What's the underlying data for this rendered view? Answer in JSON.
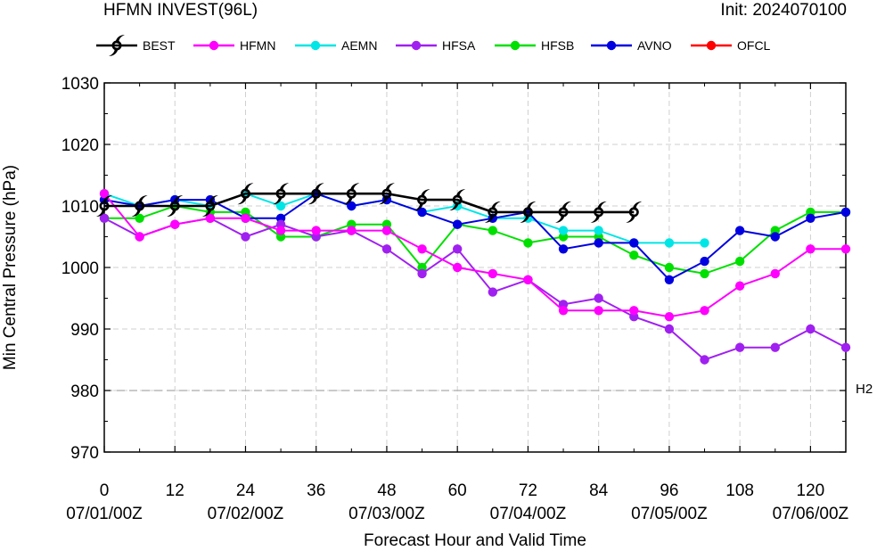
{
  "header": {
    "title": "HFMN INVEST(96L)",
    "init": "Init: 2024070100"
  },
  "reference_line_label": "H2",
  "chart_data": {
    "type": "line",
    "title": "HFMN INVEST(96L)",
    "xlabel": "Forecast Hour and Valid Time",
    "ylabel": "Min Central Pressure (hPa)",
    "xlim": [
      0,
      126
    ],
    "ylim": [
      970,
      1030
    ],
    "x_ticks": [
      0,
      12,
      24,
      36,
      48,
      60,
      72,
      84,
      96,
      108,
      120
    ],
    "x_tick_labels": [
      "0",
      "12",
      "24",
      "36",
      "48",
      "60",
      "72",
      "84",
      "96",
      "108",
      "120"
    ],
    "date_labels": [
      {
        "x": 0,
        "label": "07/01/00Z"
      },
      {
        "x": 24,
        "label": "07/02/00Z"
      },
      {
        "x": 48,
        "label": "07/03/00Z"
      },
      {
        "x": 72,
        "label": "07/04/00Z"
      },
      {
        "x": 96,
        "label": "07/05/00Z"
      },
      {
        "x": 120,
        "label": "07/06/00Z"
      }
    ],
    "y_ticks": [
      970,
      980,
      990,
      1000,
      1010,
      1020,
      1030
    ],
    "grid": true,
    "legend_position": "top",
    "reference_line": {
      "y": 980,
      "label": "H2"
    },
    "series": [
      {
        "name": "BEST",
        "color": "#000000",
        "marker": "hurricane-icon",
        "x": [
          0,
          6,
          12,
          18,
          24,
          30,
          36,
          42,
          48,
          54,
          60,
          66,
          72,
          78,
          84,
          90
        ],
        "values": [
          1010,
          1010,
          1010,
          1010,
          1012,
          1012,
          1012,
          1012,
          1012,
          1011,
          1011,
          1009,
          1009,
          1009,
          1009,
          1009
        ]
      },
      {
        "name": "HFMN",
        "color": "#ff00ff",
        "marker": "dot",
        "x": [
          0,
          6,
          12,
          18,
          24,
          30,
          36,
          42,
          48,
          54,
          60,
          66,
          72,
          78,
          84,
          90,
          96,
          102,
          108,
          114,
          120,
          126
        ],
        "values": [
          1012,
          1005,
          1007,
          1008,
          1008,
          1006,
          1006,
          1006,
          1006,
          1003,
          1000,
          999,
          998,
          993,
          993,
          993,
          992,
          993,
          997,
          999,
          1003,
          1003
        ]
      },
      {
        "name": "AEMN",
        "color": "#00e5e5",
        "marker": "dot",
        "x": [
          0,
          6,
          12,
          18,
          24,
          30,
          36,
          42,
          48,
          54,
          60,
          66,
          72,
          78,
          84,
          90,
          96,
          102
        ],
        "values": [
          1012,
          1010,
          1011,
          1010,
          1012,
          1010,
          1012,
          1010,
          1011,
          1009,
          1010,
          1008,
          1008,
          1006,
          1006,
          1004,
          1004,
          1004
        ]
      },
      {
        "name": "HFSA",
        "color": "#a020f0",
        "marker": "dot",
        "x": [
          0,
          6,
          12,
          18,
          24,
          30,
          36,
          42,
          48,
          54,
          60,
          66,
          72,
          78,
          84,
          90,
          96,
          102,
          108,
          114,
          120,
          126
        ],
        "values": [
          1008,
          1005,
          1007,
          1008,
          1005,
          1007,
          1005,
          1006,
          1003,
          999,
          1003,
          996,
          998,
          994,
          995,
          992,
          990,
          985,
          987,
          987,
          990,
          987
        ]
      },
      {
        "name": "HFSB",
        "color": "#00e000",
        "marker": "dot",
        "x": [
          0,
          6,
          12,
          18,
          24,
          30,
          36,
          42,
          48,
          54,
          60,
          66,
          72,
          78,
          84,
          90,
          96,
          102,
          108,
          114,
          120,
          126
        ],
        "values": [
          1008,
          1008,
          1010,
          1009,
          1009,
          1005,
          1005,
          1007,
          1007,
          1000,
          1007,
          1006,
          1004,
          1005,
          1005,
          1002,
          1000,
          999,
          1001,
          1006,
          1009,
          1009
        ]
      },
      {
        "name": "AVNO",
        "color": "#0000e0",
        "marker": "dot",
        "x": [
          0,
          6,
          12,
          18,
          24,
          30,
          36,
          42,
          48,
          54,
          60,
          66,
          72,
          78,
          84,
          90,
          96,
          102,
          108,
          114,
          120,
          126
        ],
        "values": [
          1011,
          1010,
          1011,
          1011,
          1008,
          1008,
          1012,
          1010,
          1011,
          1009,
          1007,
          1008,
          1009,
          1003,
          1004,
          1004,
          998,
          1001,
          1006,
          1005,
          1008,
          1009
        ]
      },
      {
        "name": "OFCL",
        "color": "#ff0000",
        "marker": "dot",
        "x": [],
        "values": []
      }
    ]
  }
}
